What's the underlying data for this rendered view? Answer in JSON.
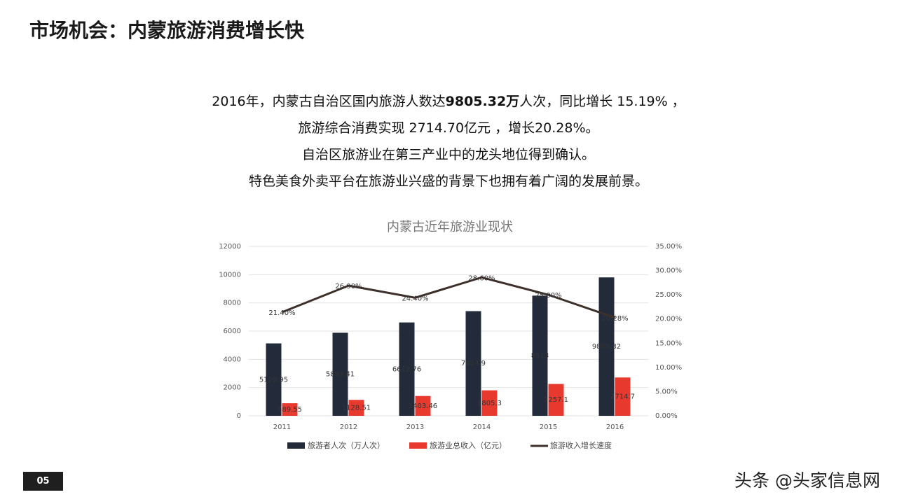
{
  "header": {
    "title": "市场机会：内蒙旅游消费增长快"
  },
  "paragraph": {
    "lines": [
      [
        "2016年，内蒙古自治区国内旅游人数达",
        "9805.32万",
        "人次，同比增长   15.19% ，"
      ],
      [
        "旅游综合消费实现   2714.70亿元 ，增长20.28%。"
      ],
      [
        "自治区旅游业在第三产业中的龙头地位得到确认。"
      ],
      [
        "特色美食外卖平台在旅游业兴盛的背景下也拥有着广阔的发展前景。"
      ]
    ]
  },
  "chart_data": {
    "type": "bar",
    "title": "内蒙古近年旅游业现状",
    "categories": [
      "2011",
      "2012",
      "2013",
      "2014",
      "2015",
      "2016"
    ],
    "series": [
      {
        "name": "旅游者人次（万人次）",
        "color": "#232b3b",
        "values": [
          5129.95,
          5883.41,
          6612.76,
          7414.9,
          8513,
          9805.32
        ]
      },
      {
        "name": "旅游业总收入（亿元）",
        "color": "#e8392f",
        "values": [
          889.55,
          1128.51,
          1403.46,
          1805.3,
          2257.1,
          2714.7
        ]
      },
      {
        "name": "旅游收入增长速度",
        "color": "#3d302b",
        "type": "line",
        "axis": "y2",
        "values": [
          21.4,
          26.9,
          24.4,
          28.6,
          25,
          20.28
        ],
        "value_labels": [
          "21.40%",
          "26.90%",
          "24.40%",
          "28.60%",
          "25.00%",
          "20.28%"
        ]
      }
    ],
    "ylim": [
      0,
      12000
    ],
    "yticks": [
      0,
      2000,
      4000,
      6000,
      8000,
      10000,
      12000
    ],
    "y2lim": [
      0,
      35
    ],
    "y2ticks": [
      {
        "value": 0,
        "label": "0.00%"
      },
      {
        "value": 5,
        "label": "5.00%"
      },
      {
        "value": 10,
        "label": "10.00%"
      },
      {
        "value": 15,
        "label": "15.00%"
      },
      {
        "value": 20,
        "label": "20.00%"
      },
      {
        "value": 25,
        "label": "25.00%"
      },
      {
        "value": 30,
        "label": "30.00%"
      },
      {
        "value": 35,
        "label": "35.00%"
      }
    ],
    "grid": true,
    "legend": "bottom"
  },
  "footer": {
    "page_number": "05",
    "watermark": "头条 @头家信息网"
  }
}
